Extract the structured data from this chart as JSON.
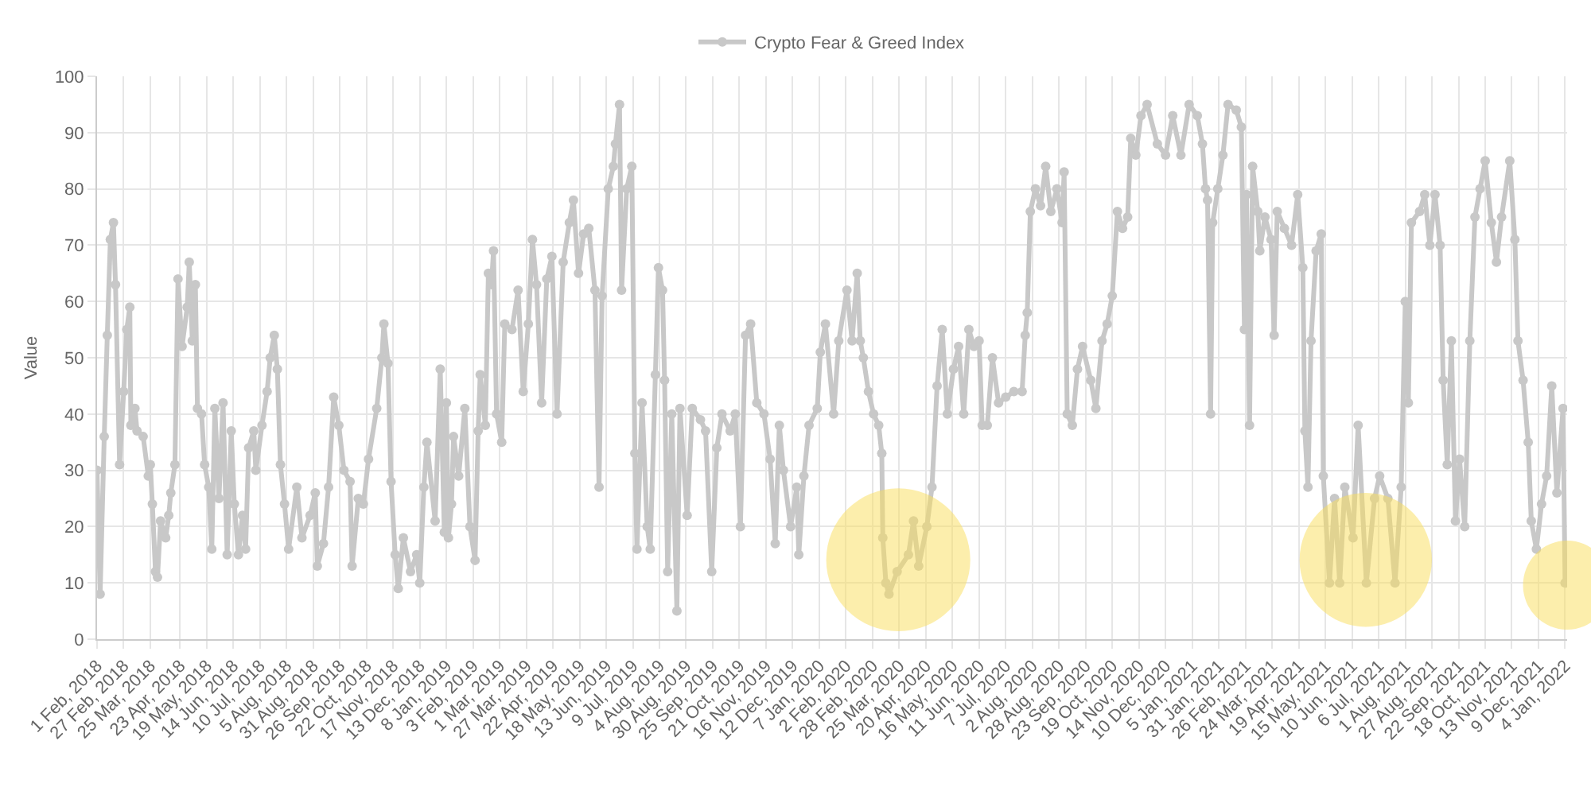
{
  "chart_data": {
    "type": "line",
    "ylabel": "Value",
    "legend": "top",
    "grid": true,
    "marker": "circle",
    "line_style": "solid",
    "xlim": [
      "2018-02-01",
      "2022-01-06"
    ],
    "xticks": [
      {
        "value": "2018-02-01",
        "label": "1 Feb, 2018"
      },
      {
        "value": "2018-02-27",
        "label": "27 Feb, 2018"
      },
      {
        "value": "2018-03-25",
        "label": "25 Mar, 2018"
      },
      {
        "value": "2018-04-23",
        "label": "23 Apr, 2018"
      },
      {
        "value": "2018-05-19",
        "label": "19 May, 2018"
      },
      {
        "value": "2018-06-14",
        "label": "14 Jun, 2018"
      },
      {
        "value": "2018-07-10",
        "label": "10 Jul, 2018"
      },
      {
        "value": "2018-08-05",
        "label": "5 Aug, 2018"
      },
      {
        "value": "2018-08-31",
        "label": "31 Aug, 2018"
      },
      {
        "value": "2018-09-26",
        "label": "26 Sep, 2018"
      },
      {
        "value": "2018-10-22",
        "label": "22 Oct, 2018"
      },
      {
        "value": "2018-11-17",
        "label": "17 Nov, 2018"
      },
      {
        "value": "2018-12-13",
        "label": "13 Dec, 2018"
      },
      {
        "value": "2019-01-08",
        "label": "8 Jan, 2019"
      },
      {
        "value": "2019-02-03",
        "label": "3 Feb, 2019"
      },
      {
        "value": "2019-03-01",
        "label": "1 Mar, 2019"
      },
      {
        "value": "2019-03-27",
        "label": "27 Mar, 2019"
      },
      {
        "value": "2019-04-22",
        "label": "22 Apr, 2019"
      },
      {
        "value": "2019-05-18",
        "label": "18 May, 2019"
      },
      {
        "value": "2019-06-13",
        "label": "13 Jun, 2019"
      },
      {
        "value": "2019-07-09",
        "label": "9 Jul, 2019"
      },
      {
        "value": "2019-08-04",
        "label": "4 Aug, 2019"
      },
      {
        "value": "2019-08-30",
        "label": "30 Aug, 2019"
      },
      {
        "value": "2019-09-25",
        "label": "25 Sep, 2019"
      },
      {
        "value": "2019-10-21",
        "label": "21 Oct, 2019"
      },
      {
        "value": "2019-11-16",
        "label": "16 Nov, 2019"
      },
      {
        "value": "2019-12-12",
        "label": "12 Dec, 2019"
      },
      {
        "value": "2020-01-07",
        "label": "7 Jan, 2020"
      },
      {
        "value": "2020-02-02",
        "label": "2 Feb, 2020"
      },
      {
        "value": "2020-02-28",
        "label": "28 Feb, 2020"
      },
      {
        "value": "2020-03-25",
        "label": "25 Mar, 2020"
      },
      {
        "value": "2020-04-20",
        "label": "20 Apr, 2020"
      },
      {
        "value": "2020-05-16",
        "label": "16 May, 2020"
      },
      {
        "value": "2020-06-11",
        "label": "11 Jun, 2020"
      },
      {
        "value": "2020-07-07",
        "label": "7 Jul, 2020"
      },
      {
        "value": "2020-08-02",
        "label": "2 Aug, 2020"
      },
      {
        "value": "2020-08-28",
        "label": "28 Aug, 2020"
      },
      {
        "value": "2020-09-23",
        "label": "23 Sep, 2020"
      },
      {
        "value": "2020-10-19",
        "label": "19 Oct, 2020"
      },
      {
        "value": "2020-11-14",
        "label": "14 Nov, 2020"
      },
      {
        "value": "2020-12-10",
        "label": "10 Dec, 2020"
      },
      {
        "value": "2021-01-05",
        "label": "5 Jan, 2021"
      },
      {
        "value": "2021-01-31",
        "label": "31 Jan, 2021"
      },
      {
        "value": "2021-02-26",
        "label": "26 Feb, 2021"
      },
      {
        "value": "2021-03-24",
        "label": "24 Mar, 2021"
      },
      {
        "value": "2021-04-19",
        "label": "19 Apr, 2021"
      },
      {
        "value": "2021-05-15",
        "label": "15 May, 2021"
      },
      {
        "value": "2021-06-10",
        "label": "10 Jun, 2021"
      },
      {
        "value": "2021-07-06",
        "label": "6 Jul, 2021"
      },
      {
        "value": "2021-08-01",
        "label": "1 Aug, 2021"
      },
      {
        "value": "2021-08-27",
        "label": "27 Aug, 2021"
      },
      {
        "value": "2021-09-22",
        "label": "22 Sep, 2021"
      },
      {
        "value": "2021-10-18",
        "label": "18 Oct, 2021"
      },
      {
        "value": "2021-11-13",
        "label": "13 Nov, 2021"
      },
      {
        "value": "2021-12-09",
        "label": "9 Dec, 2021"
      },
      {
        "value": "2022-01-04",
        "label": "4 Jan, 2022"
      }
    ],
    "ylim": [
      0,
      100
    ],
    "yticks": [
      0,
      10,
      20,
      30,
      40,
      50,
      60,
      70,
      80,
      90,
      100
    ],
    "series": [
      {
        "name": "Crypto Fear & Greed Index",
        "color": "#c8c8c8",
        "x": [
          "2018-02-01",
          "2018-02-04",
          "2018-02-08",
          "2018-02-11",
          "2018-02-14",
          "2018-02-17",
          "2018-02-19",
          "2018-02-23",
          "2018-02-27",
          "2018-03-02",
          "2018-03-05",
          "2018-03-06",
          "2018-03-10",
          "2018-03-12",
          "2018-03-18",
          "2018-03-23",
          "2018-03-25",
          "2018-03-27",
          "2018-03-30",
          "2018-04-01",
          "2018-04-04",
          "2018-04-09",
          "2018-04-12",
          "2018-04-14",
          "2018-04-18",
          "2018-04-21",
          "2018-04-25",
          "2018-04-30",
          "2018-05-02",
          "2018-05-05",
          "2018-05-08",
          "2018-05-10",
          "2018-05-14",
          "2018-05-17",
          "2018-05-21",
          "2018-05-24",
          "2018-05-27",
          "2018-05-31",
          "2018-06-04",
          "2018-06-08",
          "2018-06-12",
          "2018-06-15",
          "2018-06-19",
          "2018-06-23",
          "2018-06-26",
          "2018-06-29",
          "2018-07-04",
          "2018-07-06",
          "2018-07-12",
          "2018-07-17",
          "2018-07-20",
          "2018-07-24",
          "2018-07-27",
          "2018-07-30",
          "2018-08-03",
          "2018-08-07",
          "2018-08-15",
          "2018-08-20",
          "2018-08-28",
          "2018-09-02",
          "2018-09-04",
          "2018-09-10",
          "2018-09-15",
          "2018-09-20",
          "2018-09-25",
          "2018-09-30",
          "2018-10-06",
          "2018-10-08",
          "2018-10-14",
          "2018-10-19",
          "2018-10-24",
          "2018-11-01",
          "2018-11-06",
          "2018-11-08",
          "2018-11-12",
          "2018-11-15",
          "2018-11-19",
          "2018-11-22",
          "2018-11-27",
          "2018-12-04",
          "2018-12-10",
          "2018-12-13",
          "2018-12-17",
          "2018-12-20",
          "2018-12-28",
          "2019-01-02",
          "2019-01-06",
          "2019-01-08",
          "2019-01-10",
          "2019-01-13",
          "2019-01-15",
          "2019-01-20",
          "2019-01-26",
          "2019-01-31",
          "2019-02-05",
          "2019-02-08",
          "2019-02-10",
          "2019-02-15",
          "2019-02-18",
          "2019-02-21",
          "2019-02-23",
          "2019-02-26",
          "2019-03-03",
          "2019-03-06",
          "2019-03-13",
          "2019-03-19",
          "2019-03-24",
          "2019-03-29",
          "2019-04-02",
          "2019-04-06",
          "2019-04-11",
          "2019-04-16",
          "2019-04-21",
          "2019-04-26",
          "2019-05-02",
          "2019-05-08",
          "2019-05-12",
          "2019-05-17",
          "2019-05-22",
          "2019-05-27",
          "2019-06-02",
          "2019-06-06",
          "2019-06-09",
          "2019-06-15",
          "2019-06-20",
          "2019-06-22",
          "2019-06-26",
          "2019-06-28",
          "2019-07-03",
          "2019-07-08",
          "2019-07-11",
          "2019-07-13",
          "2019-07-18",
          "2019-07-23",
          "2019-07-26",
          "2019-07-31",
          "2019-08-03",
          "2019-08-07",
          "2019-08-09",
          "2019-08-12",
          "2019-08-16",
          "2019-08-21",
          "2019-08-24",
          "2019-08-31",
          "2019-09-05",
          "2019-09-13",
          "2019-09-18",
          "2019-09-24",
          "2019-09-29",
          "2019-10-04",
          "2019-10-12",
          "2019-10-17",
          "2019-10-22",
          "2019-10-27",
          "2019-11-01",
          "2019-11-07",
          "2019-11-14",
          "2019-11-20",
          "2019-11-25",
          "2019-11-29",
          "2019-12-03",
          "2019-12-10",
          "2019-12-16",
          "2019-12-18",
          "2019-12-23",
          "2019-12-28",
          "2020-01-05",
          "2020-01-08",
          "2020-01-13",
          "2020-01-21",
          "2020-01-26",
          "2020-02-03",
          "2020-02-08",
          "2020-02-13",
          "2020-02-16",
          "2020-02-19",
          "2020-02-24",
          "2020-02-29",
          "2020-03-05",
          "2020-03-08",
          "2020-03-09",
          "2020-03-12",
          "2020-03-15",
          "2020-03-23",
          "2020-04-03",
          "2020-04-08",
          "2020-04-13",
          "2020-04-21",
          "2020-04-26",
          "2020-05-01",
          "2020-05-06",
          "2020-05-11",
          "2020-05-17",
          "2020-05-22",
          "2020-05-27",
          "2020-06-01",
          "2020-06-06",
          "2020-06-11",
          "2020-06-14",
          "2020-06-19",
          "2020-06-24",
          "2020-06-30",
          "2020-07-07",
          "2020-07-15",
          "2020-07-23",
          "2020-07-26",
          "2020-07-28",
          "2020-07-31",
          "2020-08-05",
          "2020-08-10",
          "2020-08-15",
          "2020-08-20",
          "2020-08-26",
          "2020-08-31",
          "2020-09-02",
          "2020-09-05",
          "2020-09-10",
          "2020-09-15",
          "2020-09-20",
          "2020-09-28",
          "2020-10-03",
          "2020-10-09",
          "2020-10-14",
          "2020-10-19",
          "2020-10-24",
          "2020-10-29",
          "2020-11-03",
          "2020-11-06",
          "2020-11-11",
          "2020-11-16",
          "2020-11-22",
          "2020-12-02",
          "2020-12-10",
          "2020-12-17",
          "2020-12-25",
          "2021-01-02",
          "2021-01-10",
          "2021-01-15",
          "2021-01-18",
          "2021-01-20",
          "2021-01-23",
          "2021-01-25",
          "2021-01-30",
          "2021-02-04",
          "2021-02-09",
          "2021-02-17",
          "2021-02-22",
          "2021-02-25",
          "2021-02-27",
          "2021-03-02",
          "2021-03-05",
          "2021-03-10",
          "2021-03-12",
          "2021-03-17",
          "2021-03-23",
          "2021-03-26",
          "2021-03-29",
          "2021-04-05",
          "2021-04-12",
          "2021-04-18",
          "2021-04-23",
          "2021-04-25",
          "2021-04-28",
          "2021-05-01",
          "2021-05-06",
          "2021-05-11",
          "2021-05-13",
          "2021-05-19",
          "2021-05-24",
          "2021-05-29",
          "2021-06-03",
          "2021-06-11",
          "2021-06-16",
          "2021-06-24",
          "2021-07-02",
          "2021-07-07",
          "2021-07-15",
          "2021-07-22",
          "2021-07-28",
          "2021-08-01",
          "2021-08-04",
          "2021-08-07",
          "2021-08-15",
          "2021-08-20",
          "2021-08-25",
          "2021-08-30",
          "2021-09-04",
          "2021-09-07",
          "2021-09-11",
          "2021-09-15",
          "2021-09-19",
          "2021-09-23",
          "2021-09-28",
          "2021-10-03",
          "2021-10-08",
          "2021-10-13",
          "2021-10-18",
          "2021-10-24",
          "2021-10-29",
          "2021-11-03",
          "2021-11-11",
          "2021-11-16",
          "2021-11-19",
          "2021-11-24",
          "2021-11-29",
          "2021-12-02",
          "2021-12-07",
          "2021-12-12",
          "2021-12-17",
          "2021-12-22",
          "2021-12-27",
          "2022-01-02",
          "2022-01-04"
        ],
        "values": [
          30,
          8,
          36,
          54,
          71,
          74,
          63,
          31,
          44,
          55,
          59,
          38,
          41,
          37,
          36,
          29,
          31,
          24,
          12,
          11,
          21,
          18,
          22,
          26,
          31,
          64,
          52,
          59,
          67,
          53,
          63,
          41,
          40,
          31,
          27,
          16,
          41,
          25,
          42,
          15,
          37,
          24,
          15,
          22,
          16,
          34,
          37,
          30,
          38,
          44,
          50,
          54,
          48,
          31,
          24,
          16,
          27,
          18,
          22,
          26,
          13,
          17,
          27,
          43,
          38,
          30,
          28,
          13,
          25,
          24,
          32,
          41,
          50,
          56,
          49,
          28,
          15,
          9,
          18,
          12,
          15,
          10,
          27,
          35,
          21,
          48,
          19,
          42,
          18,
          24,
          36,
          29,
          41,
          20,
          14,
          37,
          47,
          38,
          65,
          63,
          69,
          40,
          35,
          56,
          55,
          62,
          44,
          56,
          71,
          63,
          42,
          64,
          68,
          40,
          67,
          74,
          78,
          65,
          72,
          73,
          62,
          27,
          61,
          80,
          84,
          88,
          95,
          62,
          80,
          84,
          33,
          16,
          42,
          20,
          16,
          47,
          66,
          62,
          46,
          12,
          40,
          5,
          41,
          22,
          41,
          39,
          37,
          12,
          34,
          40,
          37,
          40,
          20,
          54,
          56,
          42,
          40,
          32,
          17,
          38,
          30,
          20,
          27,
          15,
          29,
          38,
          41,
          51,
          56,
          40,
          53,
          62,
          53,
          65,
          53,
          50,
          44,
          40,
          38,
          33,
          18,
          10,
          8,
          12,
          15,
          21,
          13,
          20,
          27,
          45,
          55,
          40,
          48,
          52,
          40,
          55,
          52,
          53,
          38,
          38,
          50,
          42,
          43,
          44,
          44,
          54,
          58,
          76,
          80,
          77,
          84,
          76,
          80,
          74,
          83,
          40,
          38,
          48,
          52,
          46,
          41,
          53,
          56,
          61,
          76,
          73,
          75,
          89,
          86,
          93,
          95,
          88,
          86,
          93,
          86,
          95,
          93,
          88,
          80,
          78,
          40,
          74,
          80,
          86,
          95,
          94,
          91,
          55,
          79,
          38,
          84,
          76,
          69,
          75,
          71,
          54,
          76,
          73,
          70,
          79,
          66,
          37,
          27,
          53,
          69,
          72,
          29,
          10,
          25,
          10,
          27,
          18,
          38,
          10,
          25,
          29,
          25,
          10,
          27,
          60,
          42,
          74,
          76,
          79,
          70,
          79,
          70,
          46,
          31,
          53,
          21,
          32,
          20,
          53,
          75,
          80,
          85,
          74,
          67,
          75,
          85,
          71,
          53,
          46,
          35,
          21,
          16,
          24,
          29,
          45,
          26,
          41,
          10
        ]
      }
    ]
  }
}
